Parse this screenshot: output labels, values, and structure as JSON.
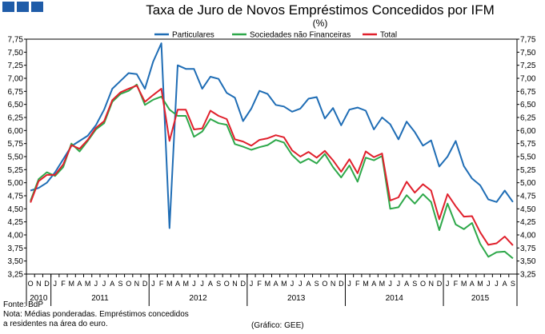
{
  "header_colors": {
    "square": "#1f5ca8"
  },
  "chart_data": {
    "type": "line",
    "title": "Taxa de Juro de Novos Empréstimos Concedidos por IFM",
    "unit": "(%)",
    "ylim": [
      3.25,
      7.75
    ],
    "yticks": [
      "3,25",
      "3,50",
      "3,75",
      "4,00",
      "4,25",
      "4,50",
      "4,75",
      "5,00",
      "5,25",
      "5,50",
      "5,75",
      "6,00",
      "6,25",
      "6,50",
      "6,75",
      "7,00",
      "7,25",
      "7,50",
      "7,75"
    ],
    "x_months": [
      "O",
      "N",
      "D",
      "J",
      "F",
      "M",
      "A",
      "M",
      "J",
      "J",
      "A",
      "S",
      "O",
      "N",
      "D",
      "J",
      "F",
      "M",
      "A",
      "M",
      "J",
      "J",
      "A",
      "S",
      "O",
      "N",
      "D",
      "J",
      "F",
      "M",
      "A",
      "M",
      "J",
      "J",
      "A",
      "S",
      "O",
      "N",
      "D",
      "J",
      "F",
      "M",
      "A",
      "M",
      "J",
      "J",
      "A",
      "S",
      "O",
      "N",
      "D",
      "J",
      "F",
      "M",
      "A",
      "M",
      "J",
      "J",
      "A",
      "S"
    ],
    "x_years": [
      {
        "label": "2010",
        "start": 0,
        "end": 3
      },
      {
        "label": "2011",
        "start": 3,
        "end": 15
      },
      {
        "label": "2012",
        "start": 15,
        "end": 27
      },
      {
        "label": "2013",
        "start": 27,
        "end": 39
      },
      {
        "label": "2014",
        "start": 39,
        "end": 51
      },
      {
        "label": "2015",
        "start": 51,
        "end": 60
      }
    ],
    "legend_position": "top",
    "series": [
      {
        "name": "Particulares",
        "color": "#1f6db5",
        "values": [
          4.85,
          4.9,
          5.0,
          5.2,
          5.45,
          5.7,
          5.8,
          5.9,
          6.1,
          6.4,
          6.8,
          6.95,
          7.1,
          7.08,
          6.8,
          7.32,
          7.67,
          4.13,
          7.25,
          7.18,
          7.18,
          6.8,
          7.03,
          6.99,
          6.72,
          6.63,
          6.18,
          6.42,
          6.76,
          6.7,
          6.49,
          6.46,
          6.36,
          6.42,
          6.61,
          6.64,
          6.23,
          6.43,
          6.1,
          6.4,
          6.44,
          6.38,
          6.02,
          6.25,
          6.12,
          5.83,
          6.17,
          5.97,
          5.71,
          5.81,
          5.31,
          5.5,
          5.8,
          5.32,
          5.08,
          4.95,
          4.68,
          4.63,
          4.85,
          4.63
        ]
      },
      {
        "name": "Sociedades não Financeiras",
        "color": "#2ea84a",
        "values": [
          4.65,
          5.07,
          5.2,
          5.13,
          5.3,
          5.75,
          5.6,
          5.8,
          6.02,
          6.14,
          6.55,
          6.7,
          6.76,
          6.88,
          6.49,
          6.59,
          6.65,
          6.4,
          6.28,
          6.28,
          5.88,
          5.98,
          6.22,
          6.14,
          6.11,
          5.74,
          5.69,
          5.63,
          5.68,
          5.72,
          5.82,
          5.77,
          5.53,
          5.38,
          5.46,
          5.37,
          5.55,
          5.3,
          5.1,
          5.33,
          5.02,
          5.48,
          5.43,
          5.51,
          4.5,
          4.53,
          4.76,
          4.6,
          4.78,
          4.63,
          4.09,
          4.6,
          4.2,
          4.11,
          4.23,
          3.83,
          3.58,
          3.67,
          3.68,
          3.55
        ]
      },
      {
        "name": "Total",
        "color": "#e0202c",
        "values": [
          4.62,
          5.03,
          5.15,
          5.15,
          5.35,
          5.72,
          5.65,
          5.82,
          6.05,
          6.18,
          6.58,
          6.73,
          6.8,
          6.86,
          6.55,
          6.68,
          6.8,
          5.8,
          6.4,
          6.4,
          6.02,
          6.04,
          6.38,
          6.28,
          6.22,
          5.83,
          5.79,
          5.71,
          5.82,
          5.85,
          5.91,
          5.87,
          5.62,
          5.5,
          5.59,
          5.48,
          5.61,
          5.43,
          5.21,
          5.45,
          5.18,
          5.6,
          5.49,
          5.56,
          4.66,
          4.72,
          5.02,
          4.81,
          4.97,
          4.85,
          4.3,
          4.78,
          4.55,
          4.35,
          4.36,
          4.05,
          3.81,
          3.84,
          3.97,
          3.8
        ]
      }
    ]
  },
  "notes": {
    "source": "Fonte: BdP",
    "note_line1": "Nota: Médias ponderadas. Empréstimos concedidos",
    "note_line2": "a residentes na área do euro.",
    "credit": "(Gráfico: GEE)"
  }
}
